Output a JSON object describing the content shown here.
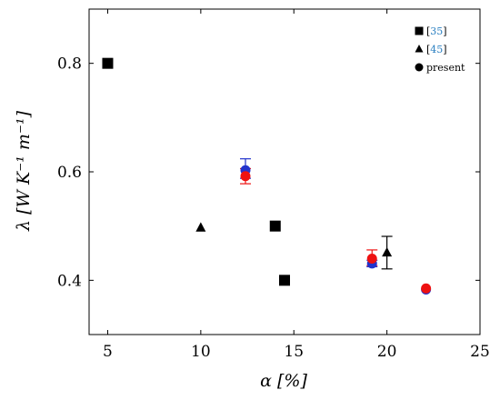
{
  "chart_data": {
    "type": "scatter",
    "xlabel": "α [%]",
    "ylabel": "λ [W K⁻¹ m⁻¹]",
    "xlim": [
      4,
      25
    ],
    "ylim": [
      0.3,
      0.9
    ],
    "xticks": [
      5,
      10,
      15,
      20,
      25
    ],
    "yticks": [
      0.4,
      0.6,
      0.8
    ],
    "xtick_labels": [
      "5",
      "10",
      "15",
      "20",
      "25"
    ],
    "ytick_labels": [
      "0.4",
      "0.6",
      "0.8"
    ],
    "grid": false,
    "legend_position": "top-right",
    "series": [
      {
        "name": "[35]",
        "marker": "square",
        "color": "#000000",
        "points": [
          {
            "x": 5.0,
            "y": 0.8
          },
          {
            "x": 14.0,
            "y": 0.5
          },
          {
            "x": 14.5,
            "y": 0.4
          }
        ]
      },
      {
        "name": "[45]",
        "marker": "triangle",
        "color": "#000000",
        "points": [
          {
            "x": 10.0,
            "y": 0.497
          },
          {
            "x": 20.0,
            "y": 0.451,
            "err_low": 0.421,
            "err_high": 0.481
          }
        ]
      },
      {
        "name": "present",
        "marker": "circle",
        "color": "#000000",
        "points": []
      }
    ],
    "present_points": [
      {
        "x": 12.4,
        "y": 0.603,
        "color": "#2233cc",
        "err_low": 0.588,
        "err_high": 0.624
      },
      {
        "x": 12.4,
        "y": 0.592,
        "color": "#ee1111",
        "err_low": 0.578,
        "err_high": 0.606
      },
      {
        "x": 19.2,
        "y": 0.431,
        "color": "#2233cc",
        "err_low": 0.425,
        "err_high": 0.437
      },
      {
        "x": 19.2,
        "y": 0.44,
        "color": "#ee1111",
        "err_low": 0.427,
        "err_high": 0.456
      },
      {
        "x": 22.1,
        "y": 0.383,
        "color": "#2233cc"
      },
      {
        "x": 22.1,
        "y": 0.385,
        "color": "#ee1111"
      }
    ],
    "legend": {
      "entries": [
        {
          "marker": "square",
          "label": "[35]",
          "linked": true
        },
        {
          "marker": "triangle",
          "label": "[45]",
          "linked": true
        },
        {
          "marker": "circle",
          "label": "present",
          "linked": false
        }
      ],
      "link_color": "#2a7fc1"
    }
  }
}
